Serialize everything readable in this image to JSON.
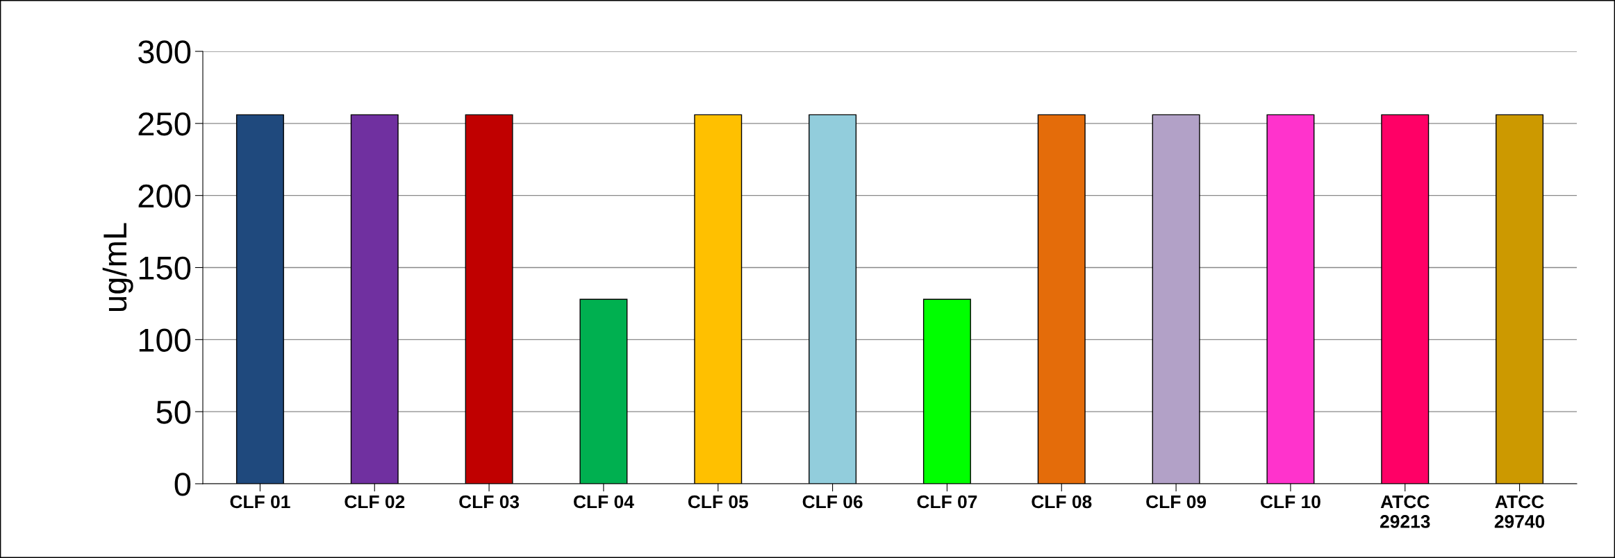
{
  "chart_data": {
    "type": "bar",
    "ylabel": "ug/mL",
    "categories": [
      "CLF 01",
      "CLF 02",
      "CLF 03",
      "CLF 04",
      "CLF 05",
      "CLF 06",
      "CLF 07",
      "CLF 08",
      "CLF 09",
      "CLF 10",
      "ATCC\n29213",
      "ATCC\n29740"
    ],
    "values": [
      256,
      256,
      256,
      128,
      256,
      256,
      128,
      256,
      256,
      256,
      256,
      256
    ],
    "colors": [
      "#1f497d",
      "#7030a0",
      "#c00000",
      "#00b050",
      "#ffc000",
      "#92cddc",
      "#00ff00",
      "#e46c0a",
      "#b2a1c7",
      "#ff33cc",
      "#ff0066",
      "#cc9900"
    ],
    "ylim": [
      0,
      300
    ],
    "yticks": [
      0,
      50,
      100,
      150,
      200,
      250,
      300
    ],
    "grid": "y"
  }
}
